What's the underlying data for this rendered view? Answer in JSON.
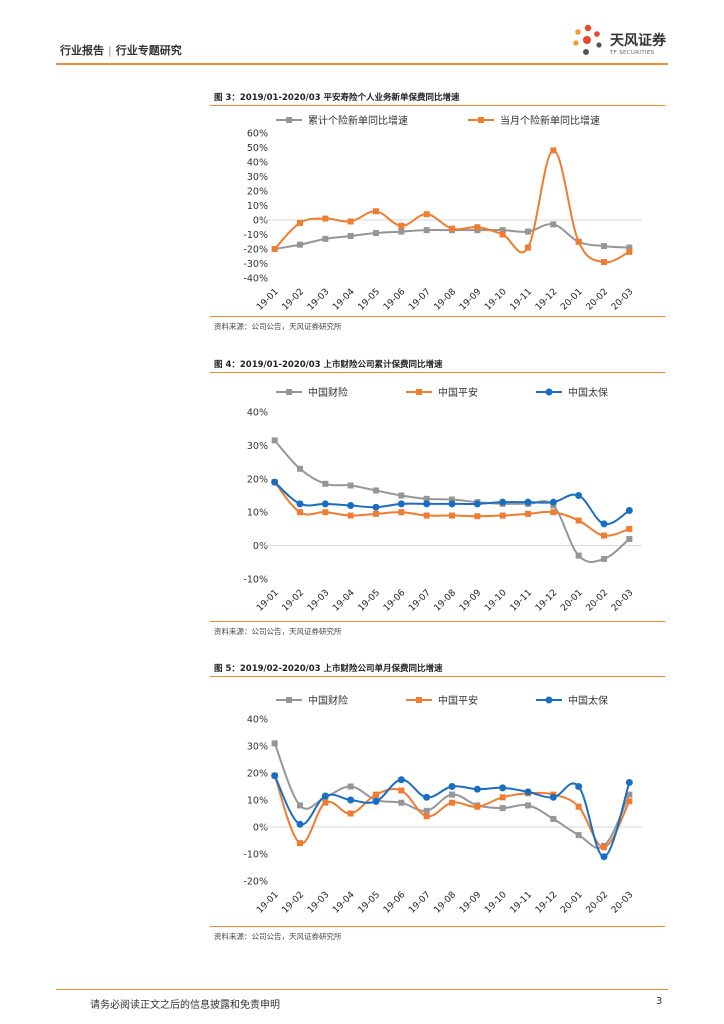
{
  "header": {
    "left_label": "行业报告",
    "right_label": "行业专题研究",
    "logo_cn": "天风证券",
    "logo_en": "TF SECURITIES"
  },
  "footer": {
    "disclaimer": "请务必阅读正文之后的信息披露和免责申明",
    "page_number": "3"
  },
  "chart_data": [
    {
      "type": "line",
      "figure_label": "图 3：2019/01-2020/03 平安寿险个人业务新单保费同比增速",
      "source": "资料来源：公司公告，天风证券研究所",
      "categories": [
        "19-01",
        "19-02",
        "19-03",
        "19-04",
        "19-05",
        "19-06",
        "19-07",
        "19-08",
        "19-09",
        "19-10",
        "19-11",
        "19-12",
        "20-01",
        "20-02",
        "20-03"
      ],
      "ylim": [
        -40,
        60
      ],
      "yticks": [
        -40,
        -30,
        -20,
        -10,
        0,
        10,
        20,
        30,
        40,
        50,
        60
      ],
      "ytick_labels": [
        "-40%",
        "-30%",
        "-20%",
        "-10%",
        "0%",
        "10%",
        "20%",
        "30%",
        "40%",
        "50%",
        "60%"
      ],
      "series": [
        {
          "name": "累计个险新单同比增速",
          "color": "#969696",
          "values": [
            -20,
            -17,
            -13,
            -11,
            -9,
            -8,
            -7,
            -7,
            -7,
            -7,
            -8,
            -3,
            -15,
            -18,
            -19
          ]
        },
        {
          "name": "当月个险新单同比增速",
          "color": "#ee7d31",
          "values": [
            -20,
            -2,
            1,
            -1,
            6,
            -4,
            4,
            -6,
            -5,
            -10,
            -19,
            48,
            -15,
            -29,
            -22
          ]
        }
      ]
    },
    {
      "type": "line",
      "figure_label": "图 4：2019/01-2020/03 上市财险公司累计保费同比增速",
      "source": "资料来源：公司公告，天风证券研究所",
      "categories": [
        "19-01",
        "19-02",
        "19-03",
        "19-04",
        "19-05",
        "19-06",
        "19-07",
        "19-08",
        "19-09",
        "19-10",
        "19-11",
        "19-12",
        "20-01",
        "20-02",
        "20-03"
      ],
      "ylim": [
        -10,
        40
      ],
      "yticks": [
        -10,
        0,
        10,
        20,
        30,
        40
      ],
      "ytick_labels": [
        "-10%",
        "0%",
        "10%",
        "20%",
        "30%",
        "40%"
      ],
      "series": [
        {
          "name": "中国财险",
          "color": "#969696",
          "values": [
            31.5,
            23,
            18.5,
            18,
            16.5,
            15,
            14,
            13.8,
            13,
            12.5,
            12.5,
            12,
            -3,
            -4,
            2
          ]
        },
        {
          "name": "中国平安",
          "color": "#ee7d31",
          "values": [
            19,
            10,
            10,
            9,
            9.5,
            10,
            9,
            9,
            8.8,
            9,
            9.5,
            10,
            7.5,
            3,
            5
          ]
        },
        {
          "name": "中国太保",
          "color": "#1a6ec2",
          "values": [
            19,
            12.5,
            12.5,
            12,
            11.5,
            12.5,
            12.5,
            12.5,
            12.5,
            13,
            13,
            13,
            15,
            6.5,
            10.5
          ]
        }
      ]
    },
    {
      "type": "line",
      "figure_label": "图 5：2019/02-2020/03 上市财险公司单月保费同比增速",
      "source": "资料来源：公司公告，天风证券研究所",
      "categories": [
        "19-01",
        "19-02",
        "19-03",
        "19-04",
        "19-05",
        "19-06",
        "19-07",
        "19-08",
        "19-09",
        "19-10",
        "19-11",
        "19-12",
        "20-01",
        "20-02",
        "20-03"
      ],
      "ylim": [
        -20,
        40
      ],
      "yticks": [
        -20,
        -10,
        0,
        10,
        20,
        30,
        40
      ],
      "ytick_labels": [
        "-20%",
        "-10%",
        "0%",
        "10%",
        "20%",
        "30%",
        "40%"
      ],
      "series": [
        {
          "name": "中国财险",
          "color": "#969696",
          "values": [
            31,
            8,
            11,
            15,
            10,
            9,
            6,
            12,
            8,
            7,
            8,
            3,
            -3,
            -7,
            12
          ]
        },
        {
          "name": "中国平安",
          "color": "#ee7d31",
          "values": [
            19,
            -6,
            9,
            5,
            12,
            13.5,
            4,
            9,
            7.5,
            11,
            12.5,
            12,
            7.5,
            -7.5,
            9.5
          ]
        },
        {
          "name": "中国太保",
          "color": "#1a6ec2",
          "values": [
            19,
            1,
            11.5,
            10,
            9.5,
            17.5,
            11,
            15,
            14,
            14.5,
            13,
            11,
            15,
            -11,
            16.5
          ]
        }
      ]
    }
  ]
}
